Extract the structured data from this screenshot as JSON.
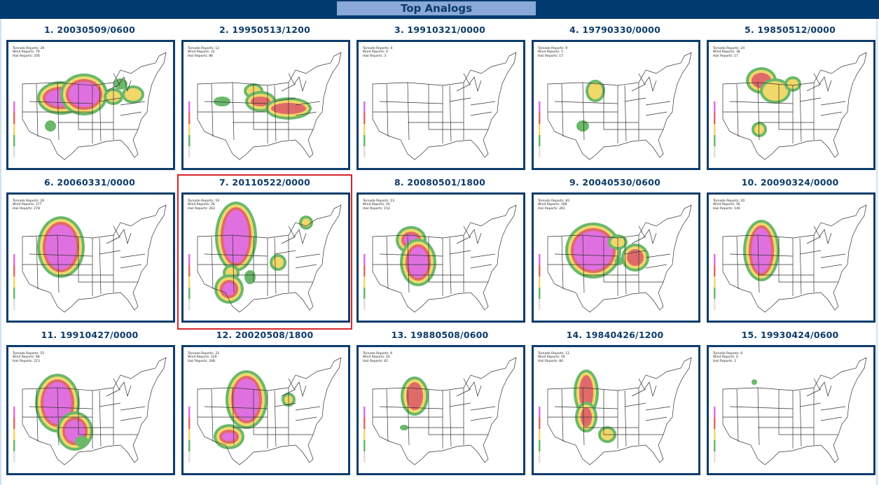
{
  "header": {
    "title": "Top Analogs"
  },
  "colors": {
    "header_bg": "#003a6e",
    "title_bg": "#8aa8d8",
    "label_text": "#0d3c6a",
    "frame_border": "#0d3c6a",
    "highlight_border": "#d4262b"
  },
  "selected_index": 7,
  "legend_scale_colors": [
    "#e070e0",
    "#e06a6a",
    "#f0d86a",
    "#6ab86a",
    "#e0e0e0"
  ],
  "analogs": [
    {
      "rank": 1,
      "label": "1. 20030509/0600",
      "tornado": "Tornado Reports: 39",
      "wind": "Wind Reports: 79",
      "hail": "Hail Reports: 256"
    },
    {
      "rank": 2,
      "label": "2. 19950513/1200",
      "tornado": "Tornado Reports: 12",
      "wind": "Wind Reports: 22",
      "hail": "Hail Reports: 86"
    },
    {
      "rank": 3,
      "label": "3. 19910321/0000",
      "tornado": "Tornado Reports: 4",
      "wind": "Wind Reports: 0",
      "hail": "Hail Reports: 3"
    },
    {
      "rank": 4,
      "label": "4. 19790330/0000",
      "tornado": "Tornado Reports: 9",
      "wind": "Wind Reports: 5",
      "hail": "Hail Reports: 17"
    },
    {
      "rank": 5,
      "label": "5. 19850512/0000",
      "tornado": "Tornado Reports: 24",
      "wind": "Wind Reports: 38",
      "hail": "Hail Reports: 17"
    },
    {
      "rank": 6,
      "label": "6. 20060331/0000",
      "tornado": "Tornado Reports: 26",
      "wind": "Wind Reports: 177",
      "hail": "Hail Reports: 278"
    },
    {
      "rank": 7,
      "label": "7. 20110522/0000",
      "tornado": "Tornado Reports: 19",
      "wind": "Wind Reports: 26",
      "hail": "Hail Reports: 263"
    },
    {
      "rank": 8,
      "label": "8. 20080501/1800",
      "tornado": "Tornado Reports: 23",
      "wind": "Wind Reports: 24",
      "hail": "Hail Reports: 152"
    },
    {
      "rank": 9,
      "label": "9. 20040530/0600",
      "tornado": "Tornado Reports: 83",
      "wind": "Wind Reports: 189",
      "hail": "Hail Reports: 261"
    },
    {
      "rank": 10,
      "label": "10. 20090324/0000",
      "tornado": "Tornado Reports: 20",
      "wind": "Wind Reports: 56",
      "hail": "Hail Reports: 146"
    },
    {
      "rank": 11,
      "label": "11. 19910427/0000",
      "tornado": "Tornado Reports: 55",
      "wind": "Wind Reports: 68",
      "hail": "Hail Reports: 213"
    },
    {
      "rank": 12,
      "label": "12. 20020508/1800",
      "tornado": "Tornado Reports: 21",
      "wind": "Wind Reports: 129",
      "hail": "Hail Reports: 268"
    },
    {
      "rank": 13,
      "label": "13. 19880508/0600",
      "tornado": "Tornado Reports: 6",
      "wind": "Wind Reports: 24",
      "hail": "Hail Reports: 62"
    },
    {
      "rank": 14,
      "label": "14. 19840426/1200",
      "tornado": "Tornado Reports: 11",
      "wind": "Wind Reports: 19",
      "hail": "Hail Reports: 80"
    },
    {
      "rank": 15,
      "label": "15. 19930424/0600",
      "tornado": "Tornado Reports: 6",
      "wind": "Wind Reports: 0",
      "hail": "Hail Reports: 2"
    }
  ]
}
